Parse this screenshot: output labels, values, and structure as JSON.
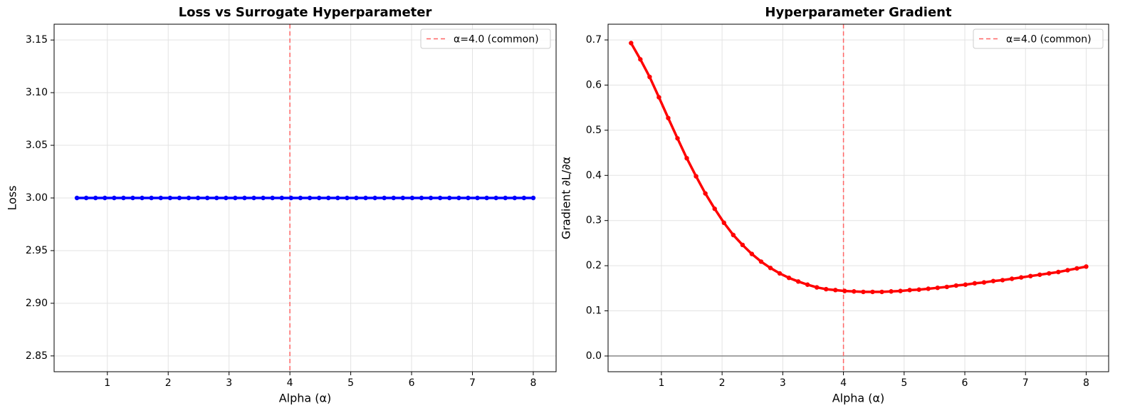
{
  "chart_data": [
    {
      "type": "line",
      "title": "Loss vs Surrogate Hyperparameter",
      "x_label": "Alpha (α)",
      "y_label": "Loss",
      "x": [
        0.5,
        0.653,
        0.806,
        0.959,
        1.112,
        1.265,
        1.418,
        1.571,
        1.724,
        1.878,
        2.031,
        2.184,
        2.337,
        2.49,
        2.643,
        2.796,
        2.949,
        3.102,
        3.255,
        3.408,
        3.561,
        3.714,
        3.867,
        4.02,
        4.173,
        4.327,
        4.48,
        4.633,
        4.786,
        4.939,
        5.092,
        5.245,
        5.398,
        5.551,
        5.704,
        5.857,
        6.01,
        6.163,
        6.316,
        6.469,
        6.622,
        6.776,
        6.929,
        7.082,
        7.235,
        7.388,
        7.541,
        7.694,
        7.847,
        8.0
      ],
      "series": [
        {
          "color": "#0000ff",
          "values": [
            3,
            3,
            3,
            3,
            3,
            3,
            3,
            3,
            3,
            3,
            3,
            3,
            3,
            3,
            3,
            3,
            3,
            3,
            3,
            3,
            3,
            3,
            3,
            3,
            3,
            3,
            3,
            3,
            3,
            3,
            3,
            3,
            3,
            3,
            3,
            3,
            3,
            3,
            3,
            3,
            3,
            3,
            3,
            3,
            3,
            3,
            3,
            3,
            3,
            3
          ]
        }
      ],
      "xlim": [
        0.125,
        8.375
      ],
      "xticks": [
        1,
        2,
        3,
        4,
        5,
        6,
        7,
        8
      ],
      "ylim": [
        2.835,
        3.165
      ],
      "yticks": [
        2.85,
        {
          "value": 2.9,
          "label": "2.90"
        },
        2.95,
        {
          "value": 3.0,
          "label": "3.00"
        },
        3.05,
        {
          "value": 3.1,
          "label": "3.10"
        },
        3.15
      ],
      "grid": true,
      "legend": "upper right",
      "vline": {
        "x": 4,
        "label": "α=4.0 (common)",
        "color": "#ff6666"
      }
    },
    {
      "type": "line",
      "title": "Hyperparameter Gradient",
      "x_label": "Alpha (α)",
      "y_label": "Gradient ∂L/∂α",
      "x": [
        0.5,
        0.653,
        0.806,
        0.959,
        1.112,
        1.265,
        1.418,
        1.571,
        1.724,
        1.878,
        2.031,
        2.184,
        2.337,
        2.49,
        2.643,
        2.796,
        2.949,
        3.102,
        3.255,
        3.408,
        3.561,
        3.714,
        3.867,
        4.02,
        4.173,
        4.327,
        4.48,
        4.633,
        4.786,
        4.939,
        5.092,
        5.245,
        5.398,
        5.551,
        5.704,
        5.857,
        6.01,
        6.163,
        6.316,
        6.469,
        6.622,
        6.776,
        6.929,
        7.082,
        7.235,
        7.388,
        7.541,
        7.694,
        7.847,
        8.0
      ],
      "series": [
        {
          "color": "#ff0000",
          "values": [
            0.693,
            0.657,
            0.618,
            0.573,
            0.527,
            0.482,
            0.438,
            0.398,
            0.36,
            0.326,
            0.295,
            0.268,
            0.246,
            0.226,
            0.209,
            0.195,
            0.183,
            0.173,
            0.165,
            0.158,
            0.152,
            0.148,
            0.146,
            0.144,
            0.143,
            0.142,
            0.142,
            0.142,
            0.143,
            0.144,
            0.146,
            0.147,
            0.149,
            0.151,
            0.153,
            0.156,
            0.158,
            0.161,
            0.163,
            0.166,
            0.168,
            0.171,
            0.174,
            0.177,
            0.18,
            0.183,
            0.186,
            0.19,
            0.194,
            0.198
          ]
        }
      ],
      "xlim": [
        0.121,
        8.37
      ],
      "xticks": [
        1,
        2,
        3,
        4,
        5,
        6,
        7,
        8
      ],
      "ylim": [
        -0.0348,
        0.7348
      ],
      "yticks": [
        {
          "value": 0,
          "label": "0.0"
        },
        0.1,
        0.2,
        0.3,
        0.4,
        0.5,
        0.6,
        0.7
      ],
      "grid": true,
      "legend": "upper right",
      "vline": {
        "x": 4,
        "label": "α=4.0 (common)",
        "color": "#ff6666"
      },
      "hline": {
        "y": 0,
        "color": "#888888"
      }
    }
  ]
}
